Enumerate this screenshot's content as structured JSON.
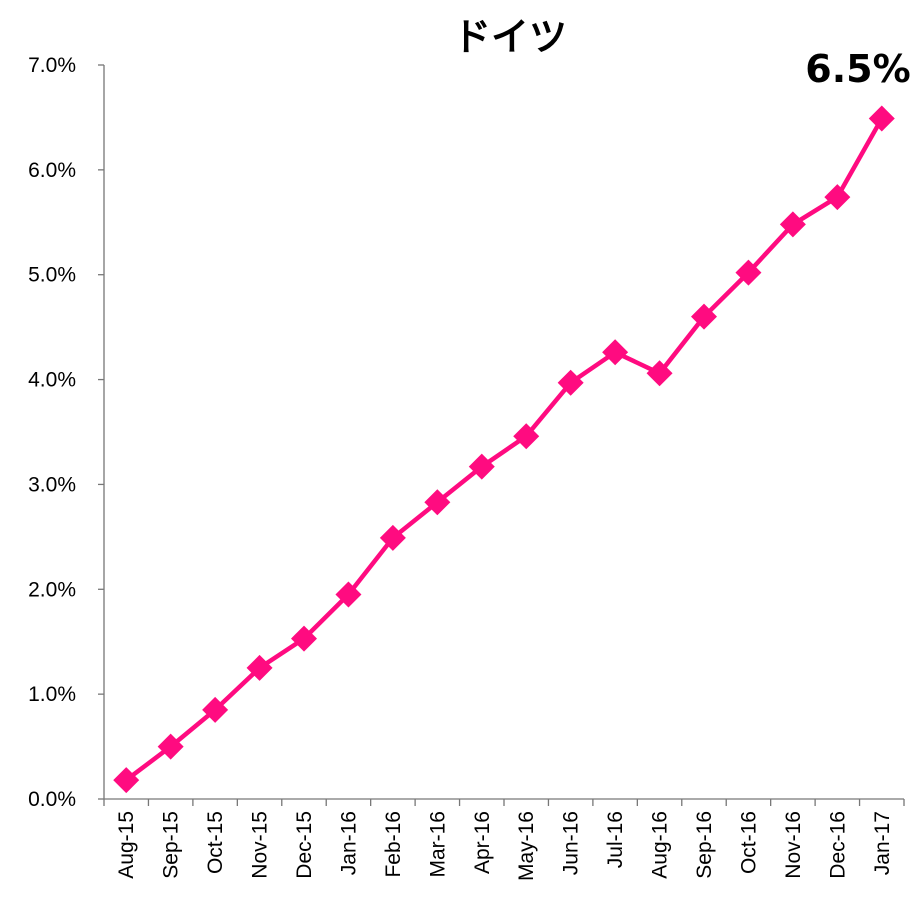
{
  "chart_data": {
    "type": "line",
    "title": "ドイツ",
    "annotation": "6.5%",
    "categories": [
      "Aug-15",
      "Sep-15",
      "Oct-15",
      "Nov-15",
      "Dec-15",
      "Jan-16",
      "Feb-16",
      "Mar-16",
      "Apr-16",
      "May-16",
      "Jun-16",
      "Jul-16",
      "Aug-16",
      "Sep-16",
      "Oct-16",
      "Nov-16",
      "Dec-16",
      "Jan-17"
    ],
    "series": [
      {
        "values": [
          0.0018,
          0.005,
          0.0085,
          0.0125,
          0.0153,
          0.0195,
          0.0249,
          0.0283,
          0.0317,
          0.0346,
          0.0397,
          0.0426,
          0.0406,
          0.046,
          0.0502,
          0.0548,
          0.0574,
          0.0649
        ],
        "color": "#ff0b80",
        "marker": "diamond"
      }
    ],
    "yticks": [
      "0.0%",
      "1.0%",
      "2.0%",
      "3.0%",
      "4.0%",
      "5.0%",
      "6.0%",
      "7.0%"
    ],
    "ylim": [
      0,
      0.07
    ],
    "xlabel": "",
    "ylabel": "",
    "grid": false,
    "legend": "none"
  }
}
